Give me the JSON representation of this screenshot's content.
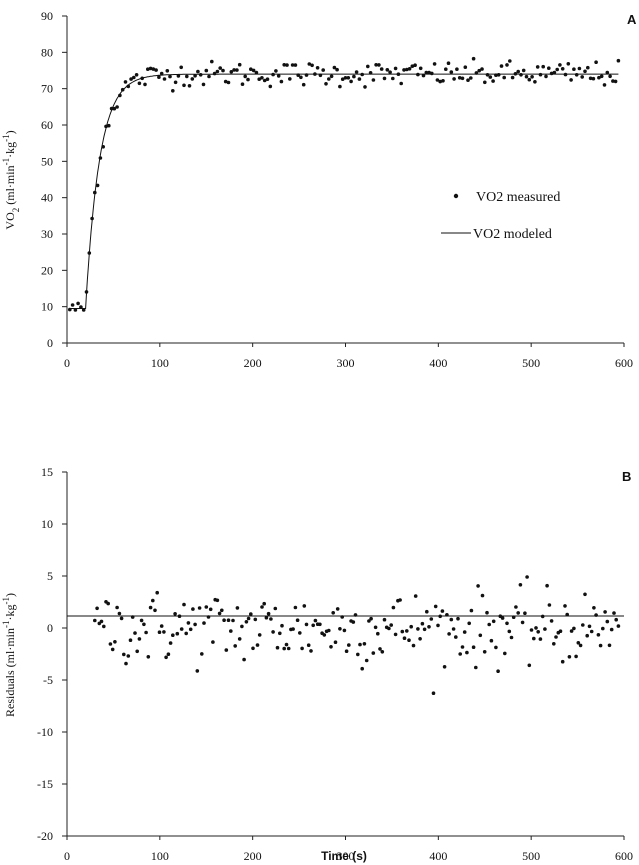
{
  "chart_data": [
    {
      "panel": "A",
      "type": "scatter",
      "ylabel": "VO2 (ml·min-1·kg-1)",
      "xlim": [
        0,
        600
      ],
      "ylim": [
        0,
        90
      ],
      "xticks": [
        0,
        100,
        200,
        300,
        400,
        500,
        600
      ],
      "yticks": [
        0,
        10,
        20,
        30,
        40,
        50,
        60,
        70,
        80,
        90
      ],
      "grid": false,
      "legend_position": "right-middle",
      "series": [
        {
          "name": "VO2 measured",
          "style": "points",
          "model": {
            "baseline": 9.5,
            "amplitude": 64.5,
            "time_delay_s": 20,
            "tau_s": 15,
            "sample_interval_s": 3,
            "start_s": 3,
            "end_s": 594
          }
        },
        {
          "name": "VO2 modeled",
          "style": "line",
          "model": {
            "baseline": 9.5,
            "amplitude": 64.5,
            "time_delay_s": 20,
            "tau_s": 15
          }
        }
      ]
    },
    {
      "panel": "B",
      "type": "scatter",
      "xlabel": "Time (s)",
      "ylabel": "Residuals (ml·min-1·kg-1)",
      "xlim": [
        0,
        600
      ],
      "ylim": [
        -20,
        15
      ],
      "xticks": [
        0,
        100,
        200,
        300,
        400,
        500,
        600
      ],
      "yticks": [
        -20,
        -15,
        -10,
        -5,
        0,
        5,
        10,
        15
      ],
      "grid": false,
      "series": [
        {
          "name": "",
          "style": "points",
          "model": {
            "start_s": 30,
            "end_s": 594,
            "sample_interval_s": 2.4,
            "spread": 1.8
          }
        }
      ]
    }
  ],
  "labels": {
    "panel_a": "A",
    "panel_b": "B",
    "legend_measured": "VO2 measured",
    "legend_modeled": "VO2 modeled",
    "ylabel_a": "VO2 (ml·min-1·kg-1)",
    "ylabel_b": "Residuals (ml·min-1·kg-1)",
    "xlabel_b": "Time (s)"
  }
}
